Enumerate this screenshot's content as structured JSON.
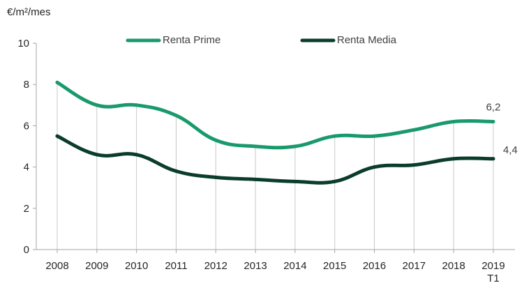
{
  "chart_data": {
    "type": "line",
    "ylabel": "€/m²/mes",
    "ylim": [
      0,
      10
    ],
    "yticks": [
      0,
      2,
      4,
      6,
      8,
      10
    ],
    "categories": [
      "2008",
      "2009",
      "2010",
      "2011",
      "2012",
      "2013",
      "2014",
      "2015",
      "2016",
      "2017",
      "2018",
      "2019 T1"
    ],
    "category_lines": [
      [
        "2008"
      ],
      [
        "2009"
      ],
      [
        "2010"
      ],
      [
        "2011"
      ],
      [
        "2012"
      ],
      [
        "2013"
      ],
      [
        "2014"
      ],
      [
        "2015"
      ],
      [
        "2016"
      ],
      [
        "2017"
      ],
      [
        "2018"
      ],
      [
        "2019",
        "T1"
      ]
    ],
    "grid": "vertical drop lines at each category",
    "legend": "top",
    "series": [
      {
        "name": "Renta Prime",
        "color": "#1a9a6c",
        "values": [
          8.1,
          7.0,
          7.0,
          6.5,
          5.3,
          5.0,
          5.0,
          5.5,
          5.5,
          5.8,
          6.2,
          6.2
        ],
        "last_label": "6,2"
      },
      {
        "name": "Renta Media",
        "color": "#0b3d2c",
        "values": [
          5.5,
          4.6,
          4.6,
          3.8,
          3.5,
          3.4,
          3.3,
          3.3,
          4.0,
          4.1,
          4.4,
          4.4
        ],
        "last_label": "4,4"
      }
    ]
  }
}
